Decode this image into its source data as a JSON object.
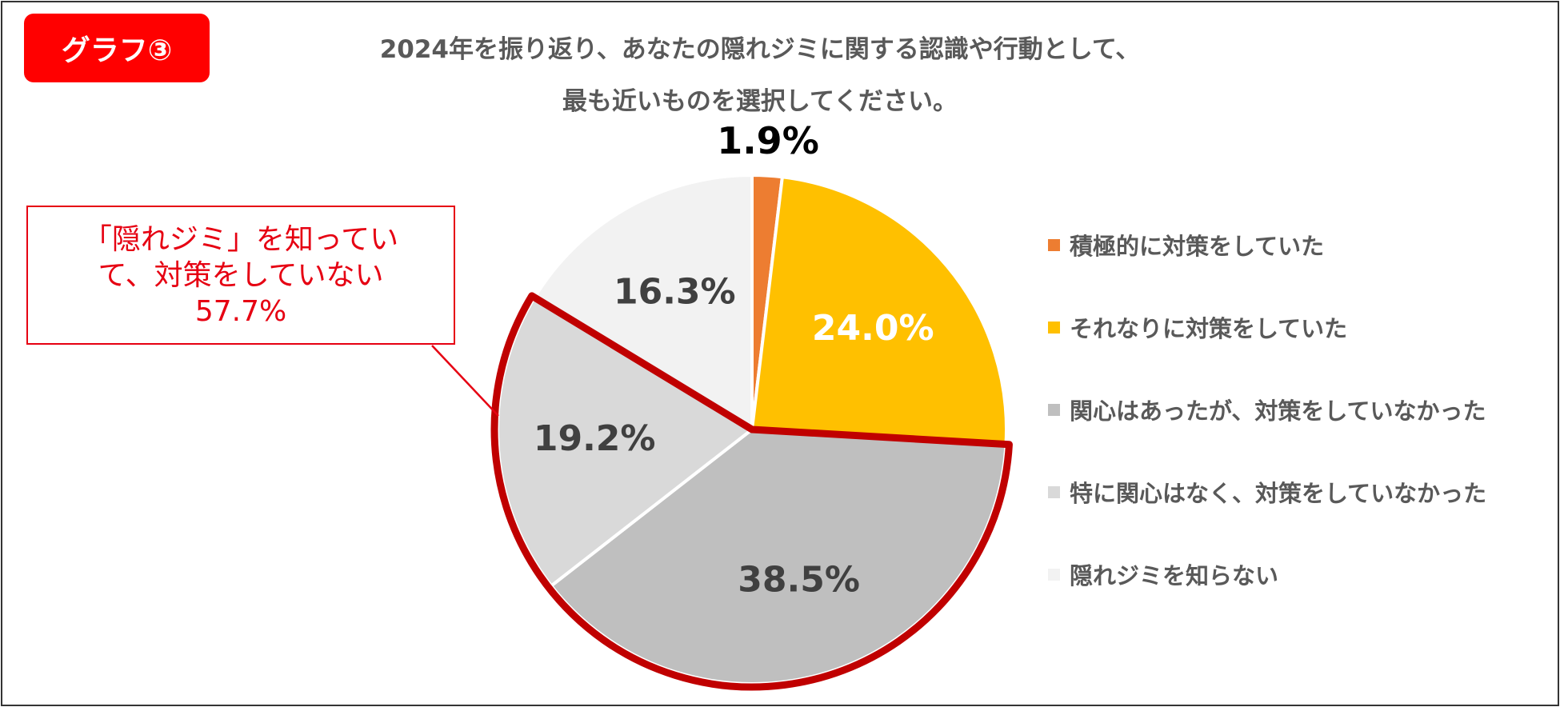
{
  "badge": "グラフ③",
  "title_lines": [
    "2024年を振り返り、あなたの隠れジミに関する認識や行動として、",
    "最も近いものを選択してください。"
  ],
  "chart_data": {
    "type": "pie",
    "start": "12 o'clock",
    "direction": "clockwise",
    "slices": [
      {
        "name": "積極的に対策をしていた",
        "value": 1.9,
        "label": "1.9%",
        "color": "#ed7d31",
        "label_color": "#000000",
        "label_position": "outside"
      },
      {
        "name": "それなりに対策をしていた",
        "value": 24.0,
        "label": "24.0%",
        "color": "#ffc000",
        "label_color": "#ffffff",
        "label_position": "inside"
      },
      {
        "name": "関心はあったが、対策をしていなかった",
        "value": 38.5,
        "label": "38.5%",
        "color": "#bfbfbf",
        "label_color": "#404040",
        "label_position": "inside"
      },
      {
        "name": "特に関心はなく、対策をしていなかった",
        "value": 19.2,
        "label": "19.2%",
        "color": "#d9d9d9",
        "label_color": "#404040",
        "label_position": "inside"
      },
      {
        "name": "隠れジミを知らない",
        "value": 16.3,
        "label": "16.3%",
        "color": "#f2f2f2",
        "label_color": "#404040",
        "label_position": "inside"
      }
    ],
    "highlight": {
      "slices": [
        "関心はあったが、対策をしていなかった",
        "特に関心はなく、対策をしていなかった"
      ],
      "outline_color": "#c00000"
    },
    "legend_placement": "right"
  },
  "callout": {
    "lines": [
      "「隠れジミ」を知ってい",
      "て、対策をしていない",
      "57.7%"
    ],
    "color": "#e60012"
  }
}
